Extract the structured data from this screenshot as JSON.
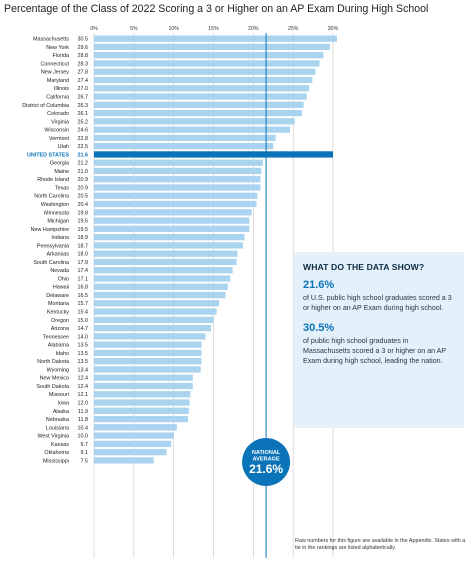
{
  "title": "Percentage of the Class of 2022 Scoring a 3 or Higher on an AP Exam During High School",
  "chart_data": {
    "type": "bar",
    "orientation": "horizontal",
    "xlim": [
      0,
      30
    ],
    "ticks": [
      0,
      5,
      10,
      15,
      20,
      25,
      30
    ],
    "tick_labels": [
      "0%",
      "5%",
      "10%",
      "15%",
      "20%",
      "25%",
      "30%"
    ],
    "grid": true,
    "categories": [
      "Massachusetts",
      "New York",
      "Florida",
      "Connecticut",
      "New Jersey",
      "Maryland",
      "Illinois",
      "California",
      "District of Columbia",
      "Colorado",
      "Virginia",
      "Wisconsin",
      "Vermont",
      "Utah",
      "UNITED STATES",
      "Georgia",
      "Maine",
      "Rhode Island",
      "Texas",
      "North Carolina",
      "Washington",
      "Minnesota",
      "Michigan",
      "New Hampshire",
      "Indiana",
      "Pennsylvania",
      "Arkansas",
      "South Carolina",
      "Nevada",
      "Ohio",
      "Hawaii",
      "Delaware",
      "Montana",
      "Kentucky",
      "Oregon",
      "Arizona",
      "Tennessee",
      "Alabama",
      "Idaho",
      "North Dakota",
      "Wyoming",
      "New Mexico",
      "South Dakota",
      "Missouri",
      "Iowa",
      "Alaska",
      "Nebraska",
      "Louisiana",
      "West Virginia",
      "Kansas",
      "Oklahoma",
      "Mississippi"
    ],
    "values": [
      30.5,
      29.6,
      28.8,
      28.3,
      27.8,
      27.4,
      27.0,
      26.7,
      26.3,
      26.1,
      25.2,
      24.6,
      22.8,
      22.5,
      21.6,
      21.2,
      21.0,
      20.9,
      20.9,
      20.5,
      20.4,
      19.8,
      19.5,
      19.5,
      18.9,
      18.7,
      18.0,
      17.9,
      17.4,
      17.1,
      16.8,
      16.5,
      15.7,
      15.4,
      15.0,
      14.7,
      14.0,
      13.5,
      13.5,
      13.5,
      13.4,
      12.4,
      12.4,
      12.1,
      12.0,
      11.9,
      11.8,
      10.4,
      10.0,
      9.7,
      9.1,
      7.5
    ],
    "value_labels": [
      "30.5",
      "29.6",
      "28.8",
      "28.3",
      "27.8",
      "27.4",
      "27.0",
      "26.7",
      "26.3",
      "26.1",
      "25.2",
      "24.6",
      "22.8",
      "22.5",
      "21.6",
      "21.2",
      "21.0",
      "20.9",
      "20.9",
      "20.5",
      "20.4",
      "19.8",
      "19.5",
      "19.5",
      "18.9",
      "18.7",
      "18.0",
      "17.9",
      "17.4",
      "17.1",
      "16.8",
      "16.5",
      "15.7",
      "15.4",
      "15.0",
      "14.7",
      "14.0",
      "13.5",
      "13.5",
      "13.5",
      "13.4",
      "12.4",
      "12.4",
      "12.1",
      "12.0",
      "11.9",
      "11.8",
      "10.4",
      "10.0",
      "9.7",
      "9.1",
      "7.5"
    ],
    "highlight_category": "UNITED STATES",
    "reference_line": {
      "value": 21.6,
      "label_line1": "NATIONAL",
      "label_line2": "AVERAGE",
      "label_value": "21.6%"
    },
    "colors": {
      "bar": "#a9d3ef",
      "highlight": "#0b73b8",
      "grid": "#c9c9c9",
      "reference": "#0b73b8"
    }
  },
  "info": {
    "heading": "WHAT DO THE DATA SHOW?",
    "stat1_value": "21.6%",
    "stat1_text": "of U.S. public high school graduates scored a 3 or higher on an AP Exam during high school.",
    "stat2_value": "30.5%",
    "stat2_text": "of public high school graduates in Massachusetts scored a 3 or higher on an AP Exam during high school, leading the nation."
  },
  "footnote": "Raw numbers for this figure are available in the Appendix. States with a tie in the rankings are listed alphabetically."
}
